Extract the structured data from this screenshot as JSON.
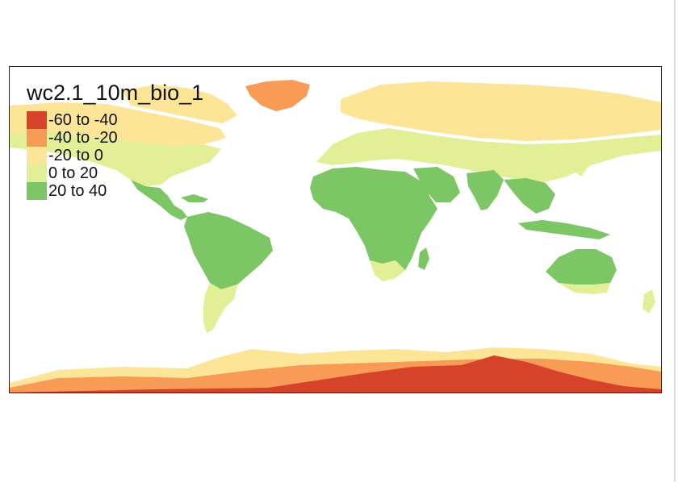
{
  "map": {
    "title": "wc2.1_10m_bio_1",
    "legend": [
      {
        "label": "-60 to -40",
        "color": "#d7432a"
      },
      {
        "label": "-40 to -20",
        "color": "#f79b57"
      },
      {
        "label": "-20 to 0",
        "color": "#fde597"
      },
      {
        "label": "0 to 20",
        "color": "#e2ef96"
      },
      {
        "label": "20 to 40",
        "color": "#7cc665"
      }
    ]
  }
}
